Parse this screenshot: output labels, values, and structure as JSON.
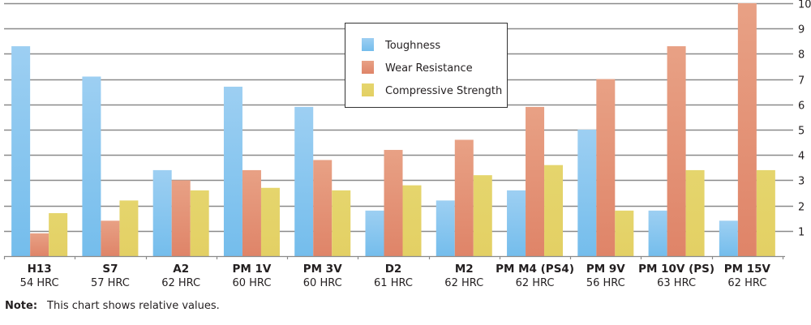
{
  "chart_data": {
    "type": "bar",
    "title": "",
    "xlabel": "",
    "ylabel": "",
    "ylim": [
      0,
      10
    ],
    "yticks": [
      1,
      2,
      3,
      4,
      5,
      6,
      7,
      8,
      9,
      10
    ],
    "y_axis_position": "right",
    "grid": true,
    "legend_position": "top-center",
    "categories": [
      "H13",
      "S7",
      "A2",
      "PM 1V",
      "PM 3V",
      "D2",
      "M2",
      "PM M4 (PS4)",
      "PM 9V",
      "PM 10V (PS)",
      "PM 15V"
    ],
    "category_sublabels": [
      "54 HRC",
      "57 HRC",
      "62 HRC",
      "60 HRC",
      "60 HRC",
      "61 HRC",
      "62 HRC",
      "62 HRC",
      "56 HRC",
      "63 HRC",
      "62 HRC"
    ],
    "series": [
      {
        "name": "Toughness",
        "color": "#8ec9f0",
        "values": [
          8.3,
          7.1,
          3.4,
          6.7,
          5.9,
          1.8,
          2.2,
          2.6,
          5.0,
          1.8,
          1.4
        ]
      },
      {
        "name": "Wear Resistance",
        "color": "#e4927a",
        "values": [
          0.9,
          1.4,
          3.0,
          3.4,
          3.8,
          4.2,
          4.6,
          5.9,
          7.0,
          8.3,
          10.0
        ]
      },
      {
        "name": "Compressive Strength",
        "color": "#e4d36a",
        "values": [
          1.7,
          2.2,
          2.6,
          2.7,
          2.6,
          2.8,
          3.2,
          3.6,
          1.8,
          3.4,
          3.4
        ]
      }
    ]
  },
  "note": {
    "label": "Note:",
    "text": "This chart shows relative values."
  }
}
